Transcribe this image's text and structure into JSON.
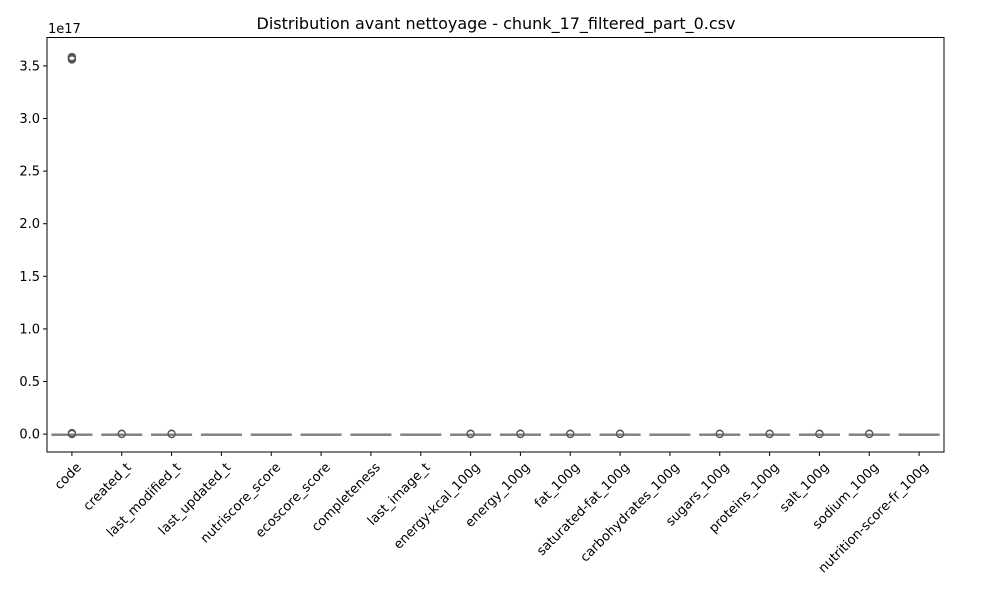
{
  "chart_data": {
    "type": "box",
    "title": "Distribution avant nettoyage - chunk_17_filtered_part_0.csv",
    "xlabel": "",
    "ylabel": "",
    "y_offset_label": "1e17",
    "ylim": [
      -0.17,
      3.77
    ],
    "yticks": [
      0.0,
      0.5,
      1.0,
      1.5,
      2.0,
      2.5,
      3.0,
      3.5
    ],
    "ytick_labels": [
      "0.0",
      "0.5",
      "1.0",
      "1.5",
      "2.0",
      "2.5",
      "3.0",
      "3.5"
    ],
    "value_unit": "1e17",
    "grid": false,
    "legend": "none",
    "colors": {
      "box_edge": "#7f7f7f",
      "outlier": "#555555",
      "axes": "#000000"
    },
    "categories": [
      "code",
      "created_t",
      "last_modified_t",
      "last_updated_t",
      "nutriscore_score",
      "ecoscore_score",
      "completeness",
      "last_image_t",
      "energy-kcal_100g",
      "energy_100g",
      "fat_100g",
      "saturated-fat_100g",
      "carbohydrates_100g",
      "sugars_100g",
      "proteins_100g",
      "salt_100g",
      "sodium_100g",
      "nutrition-score-fr_100g"
    ],
    "boxes": [
      {
        "category": "code",
        "q1": 0,
        "median": 0,
        "q3": 0,
        "whisker_low": 0,
        "whisker_high": 0,
        "outliers": [
          0.0,
          0.005,
          0.01,
          3.56,
          3.565,
          3.57,
          3.575,
          3.58,
          3.585
        ]
      },
      {
        "category": "created_t",
        "q1": 0,
        "median": 0,
        "q3": 0,
        "whisker_low": 0,
        "whisker_high": 0,
        "outliers": [
          0.0,
          0.004
        ]
      },
      {
        "category": "last_modified_t",
        "q1": 0,
        "median": 0,
        "q3": 0,
        "whisker_low": 0,
        "whisker_high": 0,
        "outliers": [
          0.0,
          0.004
        ]
      },
      {
        "category": "last_updated_t",
        "q1": 0,
        "median": 0,
        "q3": 0,
        "whisker_low": 0,
        "whisker_high": 0,
        "outliers": []
      },
      {
        "category": "nutriscore_score",
        "q1": 0,
        "median": 0,
        "q3": 0,
        "whisker_low": 0,
        "whisker_high": 0,
        "outliers": []
      },
      {
        "category": "ecoscore_score",
        "q1": 0,
        "median": 0,
        "q3": 0,
        "whisker_low": 0,
        "whisker_high": 0,
        "outliers": []
      },
      {
        "category": "completeness",
        "q1": 0,
        "median": 0,
        "q3": 0,
        "whisker_low": 0,
        "whisker_high": 0,
        "outliers": []
      },
      {
        "category": "last_image_t",
        "q1": 0,
        "median": 0,
        "q3": 0,
        "whisker_low": 0,
        "whisker_high": 0,
        "outliers": []
      },
      {
        "category": "energy-kcal_100g",
        "q1": 0,
        "median": 0,
        "q3": 0,
        "whisker_low": 0,
        "whisker_high": 0,
        "outliers": [
          0.0,
          0.004
        ]
      },
      {
        "category": "energy_100g",
        "q1": 0,
        "median": 0,
        "q3": 0,
        "whisker_low": 0,
        "whisker_high": 0,
        "outliers": [
          0.0,
          0.004
        ]
      },
      {
        "category": "fat_100g",
        "q1": 0,
        "median": 0,
        "q3": 0,
        "whisker_low": 0,
        "whisker_high": 0,
        "outliers": [
          0.0,
          0.004
        ]
      },
      {
        "category": "saturated-fat_100g",
        "q1": 0,
        "median": 0,
        "q3": 0,
        "whisker_low": 0,
        "whisker_high": 0,
        "outliers": [
          0.0,
          0.004
        ]
      },
      {
        "category": "carbohydrates_100g",
        "q1": 0,
        "median": 0,
        "q3": 0,
        "whisker_low": 0,
        "whisker_high": 0,
        "outliers": []
      },
      {
        "category": "sugars_100g",
        "q1": 0,
        "median": 0,
        "q3": 0,
        "whisker_low": 0,
        "whisker_high": 0,
        "outliers": [
          0.0,
          0.004
        ]
      },
      {
        "category": "proteins_100g",
        "q1": 0,
        "median": 0,
        "q3": 0,
        "whisker_low": 0,
        "whisker_high": 0,
        "outliers": [
          0.0,
          0.004
        ]
      },
      {
        "category": "salt_100g",
        "q1": 0,
        "median": 0,
        "q3": 0,
        "whisker_low": 0,
        "whisker_high": 0,
        "outliers": [
          0.0,
          0.004
        ]
      },
      {
        "category": "sodium_100g",
        "q1": 0,
        "median": 0,
        "q3": 0,
        "whisker_low": 0,
        "whisker_high": 0,
        "outliers": [
          0.0,
          0.004
        ]
      },
      {
        "category": "nutrition-score-fr_100g",
        "q1": 0,
        "median": 0,
        "q3": 0,
        "whisker_low": 0,
        "whisker_high": 0,
        "outliers": []
      }
    ]
  }
}
